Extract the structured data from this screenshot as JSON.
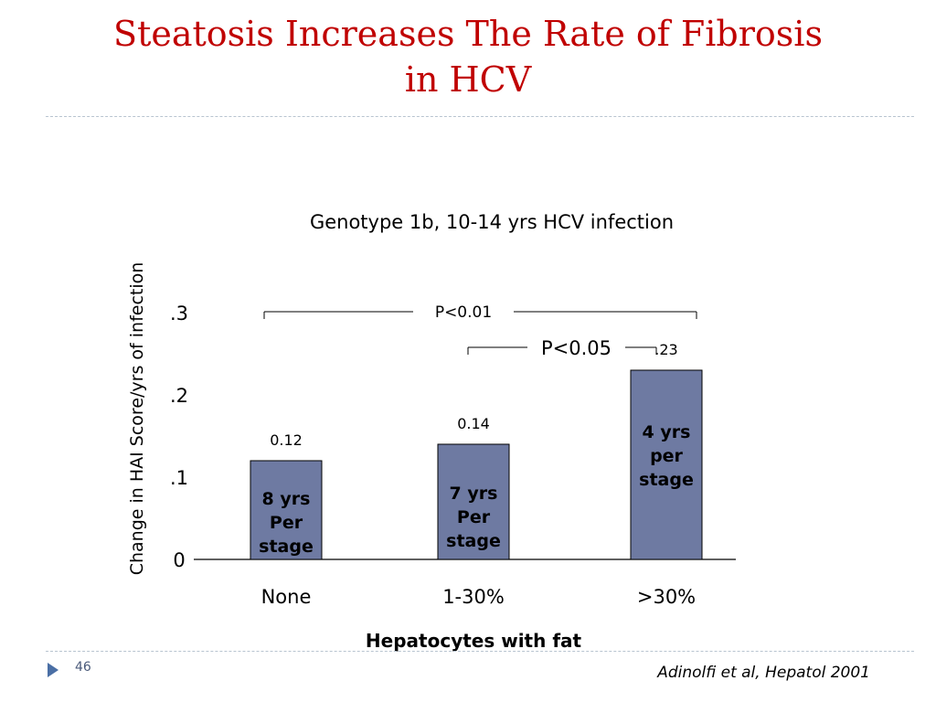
{
  "slide": {
    "title_line1": "Steatosis Increases The Rate of Fibrosis",
    "title_line2": "in HCV",
    "slide_number": "46",
    "citation": "Adinolfi et al, Hepatol 2001"
  },
  "chart_data": {
    "type": "bar",
    "title": "Genotype 1b, 10-14 yrs HCV infection",
    "xlabel": "Hepatocytes with fat",
    "ylabel": "Change in HAI Score/yrs of infection",
    "categories": [
      "None",
      "1-30%",
      ">30%"
    ],
    "values": [
      0.12,
      0.14,
      0.23
    ],
    "value_labels": [
      "0.12",
      "0.14",
      ".23"
    ],
    "bar_text": [
      [
        "8 yrs",
        "Per",
        "stage"
      ],
      [
        "7 yrs",
        "Per",
        "stage"
      ],
      [
        "4 yrs",
        "per",
        "stage"
      ]
    ],
    "ylim": [
      0,
      0.3
    ],
    "yticks": [
      {
        "value": 0,
        "label": "0"
      },
      {
        "value": 0.1,
        "label": ".1"
      },
      {
        "value": 0.2,
        "label": ".2"
      },
      {
        "value": 0.3,
        "label": ".3"
      }
    ],
    "significance": [
      {
        "from": 0,
        "to": 2,
        "label": "P<0.01"
      },
      {
        "from": 1,
        "to": 2,
        "label": "P<0.05"
      }
    ],
    "grid": false,
    "bar_color": "#6e7aa2"
  }
}
